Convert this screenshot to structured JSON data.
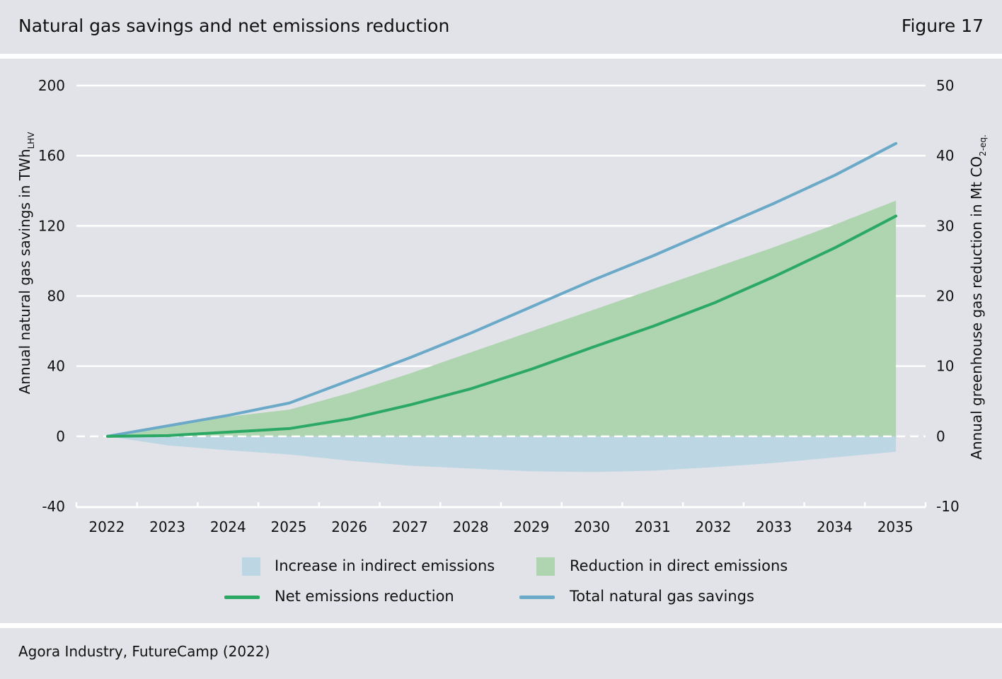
{
  "header": {
    "title": "Natural gas savings and net emissions reduction",
    "figure_label": "Figure 17"
  },
  "source": "Agora Industry, FutureCamp (2022)",
  "colors": {
    "background": "#e2e3e8",
    "grid": "#ffffff",
    "direct_area": "#aed5b0",
    "indirect_area": "#bcd6e3",
    "net_line": "#2aa864",
    "gas_line": "#6aa9c8"
  },
  "chart_data": {
    "type": "line",
    "title": "Natural gas savings and net emissions reduction",
    "x": [
      2022,
      2023,
      2024,
      2025,
      2026,
      2027,
      2028,
      2029,
      2030,
      2031,
      2032,
      2033,
      2034,
      2035
    ],
    "xlabel": "",
    "ylabel_left_main": "Annual natural gas savings in TWh",
    "ylabel_left_sub": "LHV",
    "ylabel_right_main": "Annual greenhouse gas reduction in Mt CO",
    "ylabel_right_sub1": "2",
    "ylabel_right_sub2": "-eq.",
    "ylim_left": [
      -40,
      200
    ],
    "ylim_right": [
      -10,
      50
    ],
    "yticks_left": [
      "-40",
      "0",
      "40",
      "80",
      "120",
      "160",
      "200"
    ],
    "yticks_right": [
      "-10",
      "0",
      "10",
      "20",
      "30",
      "40",
      "50"
    ],
    "xticks": [
      "2022",
      "2023",
      "2024",
      "2025",
      "2026",
      "2027",
      "2028",
      "2029",
      "2030",
      "2031",
      "2032",
      "2033",
      "2034",
      "2035"
    ],
    "grid": true,
    "legend_position": "bottom",
    "series": [
      {
        "name": "Increase in indirect emissions",
        "type": "area",
        "axis": "right",
        "values": [
          0,
          -1.3,
          -2.0,
          -2.6,
          -3.5,
          -4.2,
          -4.6,
          -5.0,
          -5.1,
          -4.9,
          -4.4,
          -3.8,
          -3.0,
          -2.2
        ]
      },
      {
        "name": "Reduction in direct emissions",
        "type": "area",
        "axis": "right",
        "values": [
          0,
          1.6,
          2.8,
          3.8,
          6.2,
          9.0,
          12.0,
          15.0,
          18.0,
          21.0,
          24.0,
          27.0,
          30.2,
          33.6
        ]
      },
      {
        "name": "Net emissions reduction",
        "type": "line",
        "axis": "right",
        "values": [
          0,
          0.1,
          0.6,
          1.1,
          2.5,
          4.5,
          6.8,
          9.6,
          12.7,
          15.7,
          19.0,
          22.8,
          26.9,
          31.4
        ]
      },
      {
        "name": "Total natural gas savings",
        "type": "line",
        "axis": "left",
        "values": [
          0,
          6,
          12,
          19,
          32,
          45,
          59,
          74,
          89,
          103,
          118,
          133,
          149,
          167
        ]
      }
    ]
  }
}
